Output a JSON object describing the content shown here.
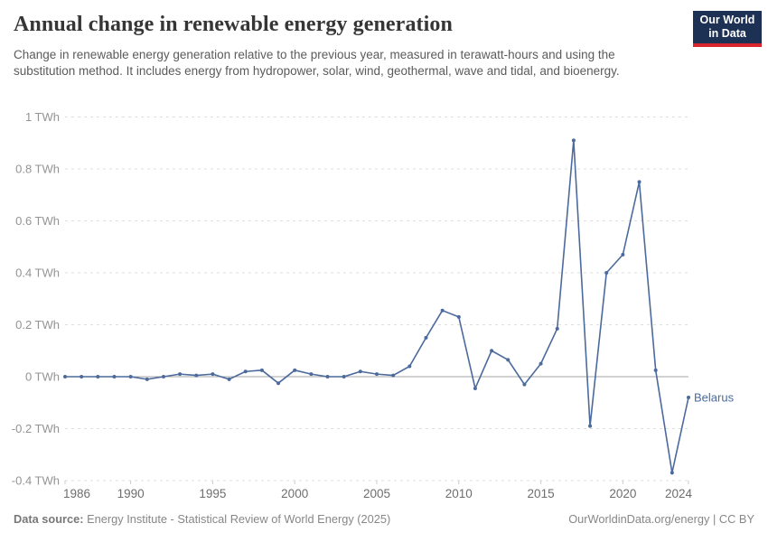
{
  "header": {
    "title": "Annual change in renewable energy generation",
    "subtitle": "Change in renewable energy generation relative to the previous year, measured in terawatt-hours and using the substitution method. It includes energy from hydropower, solar, wind, geothermal, wave and tidal, and bioenergy.",
    "logo": {
      "line1": "Our World",
      "line2": "in Data"
    }
  },
  "chart_data": {
    "type": "line",
    "title": "Annual change in renewable energy generation",
    "xlabel": "",
    "ylabel": "",
    "unit": "TWh",
    "xlim": [
      1986,
      2024
    ],
    "ylim": [
      -0.4,
      1
    ],
    "grid": "horizontal-dashed",
    "legend_position": "end-of-line-label",
    "x_ticks": [
      1986,
      1990,
      1995,
      2000,
      2005,
      2010,
      2015,
      2020,
      2024
    ],
    "y_ticks": [
      {
        "value": 1,
        "label": "1 TWh"
      },
      {
        "value": 0.8,
        "label": "0.8 TWh"
      },
      {
        "value": 0.6,
        "label": "0.6 TWh"
      },
      {
        "value": 0.4,
        "label": "0.4 TWh"
      },
      {
        "value": 0.2,
        "label": "0.2 TWh"
      },
      {
        "value": 0,
        "label": "0 TWh"
      },
      {
        "value": -0.2,
        "label": "-0.2 TWh"
      },
      {
        "value": -0.4,
        "label": "-0.4 TWh"
      }
    ],
    "series": [
      {
        "name": "Belarus",
        "color": "#4c6a9c",
        "x": [
          1986,
          1987,
          1988,
          1989,
          1990,
          1991,
          1992,
          1993,
          1994,
          1995,
          1996,
          1997,
          1998,
          1999,
          2000,
          2001,
          2002,
          2003,
          2004,
          2005,
          2006,
          2007,
          2008,
          2009,
          2010,
          2011,
          2012,
          2013,
          2014,
          2015,
          2016,
          2017,
          2018,
          2019,
          2020,
          2021,
          2022,
          2023,
          2024
        ],
        "values": [
          0,
          0,
          0,
          0,
          0,
          -0.01,
          0,
          0.01,
          0.005,
          0.01,
          -0.01,
          0.02,
          0.025,
          -0.025,
          0.025,
          0.01,
          0,
          0,
          0.02,
          0.01,
          0.005,
          0.04,
          0.15,
          0.255,
          0.23,
          -0.045,
          0.1,
          0.065,
          -0.03,
          0.05,
          0.185,
          0.91,
          -0.19,
          0.4,
          0.47,
          0.75,
          0.025,
          -0.37,
          -0.08
        ]
      }
    ]
  },
  "footer": {
    "datasource_label": "Data source:",
    "datasource_text": " Energy Institute - Statistical Review of World Energy (2025)",
    "credit": "OurWorldinData.org/energy | CC BY"
  },
  "colors": {
    "line": "#4c6a9c",
    "grid": "#dedede",
    "zero_line": "#a6a6a6",
    "tick_mark": "#cccccc",
    "y_axis_text": "#949494",
    "x_axis_text": "#6e6e6e",
    "logo_bg": "#1d3154",
    "logo_bar": "#d9262e"
  }
}
